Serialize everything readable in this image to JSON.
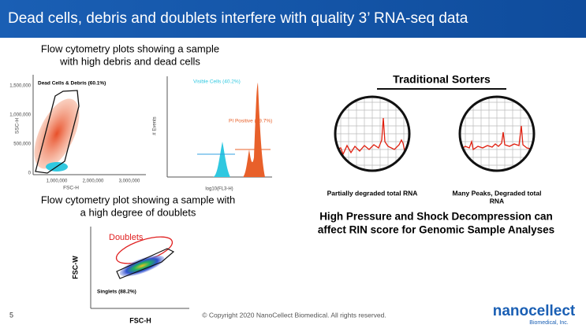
{
  "header": {
    "title": "Dead cells, debris and doublets interfere with quality 3’ RNA-seq data"
  },
  "left": {
    "caption_top": [
      "Flow cytometry plots showing a sample",
      "with high debris and dead cells"
    ],
    "plot_scatter": {
      "gate_label": "Dead Cells & Debris (60.1%)",
      "y_label": "SSC-H",
      "x_label": "FSC-H",
      "y_ticks": [
        "0",
        "500,000",
        "1,000,000",
        "1,500,000"
      ],
      "x_ticks": [
        "1,000,000",
        "2,000,000",
        "3,000,000"
      ]
    },
    "plot_histogram": {
      "gate_left": "Visible Cells (40.2%)",
      "gate_right": "PI Positive (59.7%)",
      "y_label": "# Events",
      "x_label": "log10(FL3-H)"
    },
    "caption_bottom": [
      "Flow cytometry plot showing a sample with",
      "a high degree of doublets"
    ],
    "plot_doublets": {
      "doublets_label": "Doublets",
      "singlets_label": "Singlets (88.2%)",
      "y_label": "FSC-W",
      "x_label": "FSC-H"
    }
  },
  "right": {
    "heading": "Traditional Sorters",
    "caption_left": [
      "Partially degraded total RNA"
    ],
    "caption_right": [
      "Many Peaks, Degraded total",
      "RNA"
    ],
    "statement": [
      "High Pressure and Shock Decompression can",
      "affect RIN score for Genomic Sample Analyses"
    ]
  },
  "footer": {
    "page_number": "5",
    "copyright": "© Copyright 2020 NanoCellect Biomedical. All rights reserved.",
    "logo": "nanocellect",
    "logo_sub": "Biomedical, Inc."
  }
}
